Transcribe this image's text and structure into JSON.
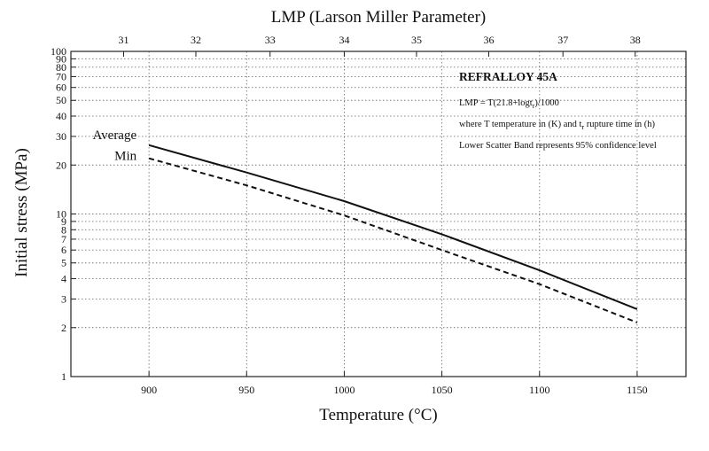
{
  "chart_data": {
    "type": "line",
    "title": "LMP (Larson Miller Parameter)",
    "xlabel": "Temperature (°C)",
    "ylabel": "Initial stress (MPa)",
    "y_scale": "log",
    "xlim": [
      860,
      1175
    ],
    "ylim": [
      1,
      100
    ],
    "x_ticks": [
      900,
      950,
      1000,
      1050,
      1100,
      1150
    ],
    "y_ticks": [
      1,
      2,
      3,
      4,
      5,
      6,
      7,
      8,
      9,
      10,
      20,
      30,
      40,
      50,
      60,
      70,
      80,
      90,
      100
    ],
    "top_axis": {
      "label": "LMP (Larson Miller Parameter)",
      "ticks": [
        {
          "label": "31",
          "temperature": 887
        },
        {
          "label": "32",
          "temperature": 924
        },
        {
          "label": "33",
          "temperature": 962
        },
        {
          "label": "34",
          "temperature": 1000
        },
        {
          "label": "35",
          "temperature": 1037
        },
        {
          "label": "36",
          "temperature": 1074
        },
        {
          "label": "37",
          "temperature": 1112
        },
        {
          "label": "38",
          "temperature": 1149
        }
      ]
    },
    "grid": true,
    "series": [
      {
        "name": "Average",
        "style": "solid",
        "x": [
          900,
          950,
          1000,
          1050,
          1100,
          1150
        ],
        "values": [
          26.5,
          18,
          12,
          7.5,
          4.5,
          2.6
        ]
      },
      {
        "name": "Min",
        "style": "dashed",
        "x": [
          900,
          950,
          1000,
          1050,
          1100,
          1150
        ],
        "values": [
          22,
          15,
          9.8,
          6,
          3.7,
          2.15
        ]
      }
    ],
    "annotation": {
      "title": "REFRALLOY 45A",
      "formula_prefix": "LMP = T(21.8+logt",
      "formula_sub": "r",
      "formula_suffix": ")/1000",
      "where_prefix": "where T temperature in (K) and t",
      "where_sub": "r",
      "where_suffix": " rupture time in (h)",
      "band": "Lower Scatter Band represents 95% confidence level"
    }
  }
}
